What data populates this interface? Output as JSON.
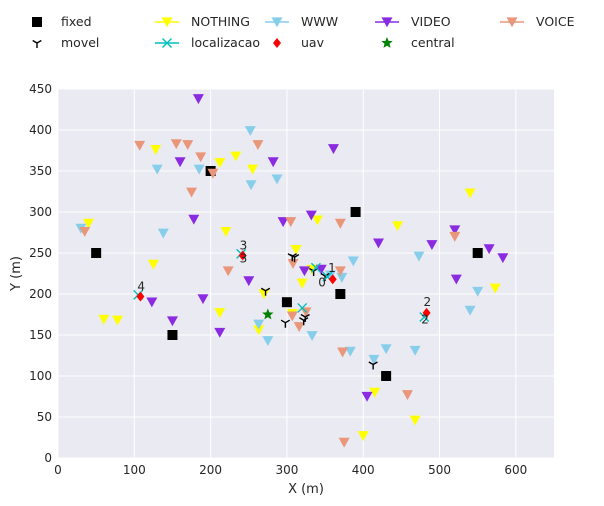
{
  "chart_data": {
    "type": "scatter",
    "xlabel": "X (m)",
    "ylabel": "Y (m)",
    "xlim": [
      0,
      650
    ],
    "ylim": [
      0,
      450
    ],
    "xticks": [
      0,
      100,
      200,
      300,
      400,
      500,
      600
    ],
    "yticks": [
      0,
      50,
      100,
      150,
      200,
      250,
      300,
      350,
      400,
      450
    ],
    "grid": true,
    "legend_position": "top, outside plot, 5 columns",
    "series": [
      {
        "name": "fixed",
        "marker": "square",
        "color": "#000000",
        "points": [
          [
            50,
            250
          ],
          [
            200,
            350
          ],
          [
            390,
            300
          ],
          [
            550,
            250
          ],
          [
            150,
            150
          ],
          [
            300,
            190
          ],
          [
            370,
            200
          ],
          [
            430,
            100
          ]
        ]
      },
      {
        "name": "NOTHING",
        "marker": "triangle-down",
        "color": "#ffff00",
        "points": [
          [
            128,
            376
          ],
          [
            40,
            286
          ],
          [
            125,
            236
          ],
          [
            60,
            169
          ],
          [
            78,
            168
          ],
          [
            212,
            360
          ],
          [
            233,
            368
          ],
          [
            255,
            352
          ],
          [
            220,
            276
          ],
          [
            270,
            200
          ],
          [
            212,
            177
          ],
          [
            263,
            156
          ],
          [
            307,
            176
          ],
          [
            312,
            254
          ],
          [
            340,
            290
          ],
          [
            333,
            230
          ],
          [
            320,
            213
          ],
          [
            445,
            283
          ],
          [
            540,
            323
          ],
          [
            573,
            207
          ],
          [
            415,
            80
          ],
          [
            400,
            27
          ],
          [
            468,
            46
          ]
        ]
      },
      {
        "name": "WWW",
        "marker": "triangle-down",
        "color": "#87ceeb",
        "points": [
          [
            30,
            280
          ],
          [
            130,
            352
          ],
          [
            138,
            274
          ],
          [
            185,
            352
          ],
          [
            252,
            399
          ],
          [
            253,
            333
          ],
          [
            287,
            340
          ],
          [
            263,
            163
          ],
          [
            275,
            143
          ],
          [
            333,
            149
          ],
          [
            357,
            223
          ],
          [
            387,
            240
          ],
          [
            383,
            130
          ],
          [
            414,
            120
          ],
          [
            430,
            133
          ],
          [
            468,
            131
          ],
          [
            473,
            246
          ],
          [
            540,
            180
          ],
          [
            550,
            203
          ],
          [
            372,
            220
          ]
        ]
      },
      {
        "name": "VIDEO",
        "marker": "triangle-down",
        "color": "#8a2be2",
        "points": [
          [
            184,
            438
          ],
          [
            160,
            361
          ],
          [
            178,
            291
          ],
          [
            190,
            194
          ],
          [
            212,
            153
          ],
          [
            150,
            167
          ],
          [
            123,
            190
          ],
          [
            250,
            216
          ],
          [
            282,
            361
          ],
          [
            295,
            288
          ],
          [
            332,
            296
          ],
          [
            361,
            377
          ],
          [
            420,
            262
          ],
          [
            490,
            260
          ],
          [
            520,
            278
          ],
          [
            522,
            218
          ],
          [
            565,
            255
          ],
          [
            583,
            244
          ],
          [
            323,
            228
          ],
          [
            345,
            230
          ],
          [
            405,
            75
          ]
        ]
      },
      {
        "name": "VOICE",
        "marker": "triangle-down",
        "color": "#e9967a",
        "points": [
          [
            107,
            381
          ],
          [
            155,
            383
          ],
          [
            170,
            382
          ],
          [
            187,
            367
          ],
          [
            175,
            324
          ],
          [
            203,
            347
          ],
          [
            262,
            382
          ],
          [
            305,
            288
          ],
          [
            223,
            228
          ],
          [
            308,
            237
          ],
          [
            325,
            178
          ],
          [
            316,
            160
          ],
          [
            370,
            286
          ],
          [
            370,
            228
          ],
          [
            373,
            129
          ],
          [
            375,
            19
          ],
          [
            458,
            77
          ],
          [
            520,
            270
          ],
          [
            35,
            276
          ],
          [
            307,
            173
          ]
        ]
      },
      {
        "name": "movel",
        "marker": "tri-down",
        "color": "#000000",
        "points": [
          [
            307,
            246
          ],
          [
            310,
            245
          ],
          [
            272,
            204
          ],
          [
            298,
            165
          ],
          [
            322,
            168
          ],
          [
            324,
            172
          ],
          [
            335,
            228
          ],
          [
            350,
            222
          ],
          [
            413,
            114
          ]
        ]
      },
      {
        "name": "localizacao",
        "marker": "x",
        "color": "#00bfbf",
        "points": [
          [
            105,
            199
          ],
          [
            240,
            249
          ],
          [
            320,
            183
          ],
          [
            338,
            232
          ],
          [
            353,
            221
          ],
          [
            480,
            172
          ]
        ]
      },
      {
        "name": "uav",
        "marker": "diamond",
        "color": "#ff0000",
        "points": [
          [
            108,
            197
          ],
          [
            242,
            247
          ],
          [
            360,
            218
          ],
          [
            483,
            177
          ]
        ]
      },
      {
        "name": "central",
        "marker": "star",
        "color": "#008000",
        "points": [
          [
            275,
            175
          ]
        ]
      }
    ],
    "annotations": [
      {
        "text": "0",
        "x": 346,
        "y": 214
      },
      {
        "text": "1",
        "x": 359,
        "y": 232
      },
      {
        "text": "2",
        "x": 484,
        "y": 190
      },
      {
        "text": "2",
        "x": 481,
        "y": 169
      },
      {
        "text": "3",
        "x": 243,
        "y": 259
      },
      {
        "text": "3",
        "x": 243,
        "y": 243
      },
      {
        "text": "4",
        "x": 109,
        "y": 209
      }
    ]
  }
}
